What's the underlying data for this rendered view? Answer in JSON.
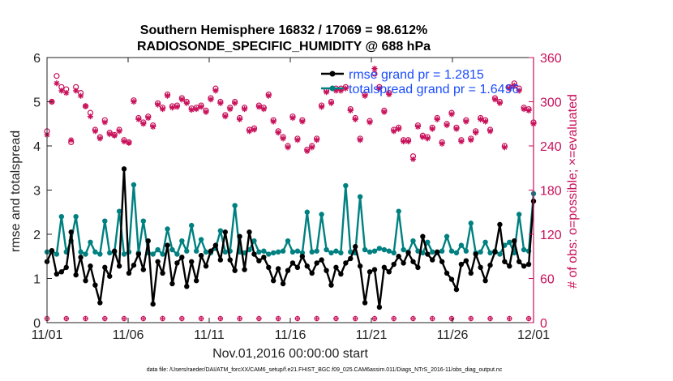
{
  "chart_data": {
    "type": "line",
    "title": "Southern Hemisphere 16832 / 17069 = 98.612%",
    "subtitle": "RADIOSONDE_SPECIFIC_HUMIDITY @ 688 hPa",
    "xlabel": "Nov.01,2016 00:00:00 start",
    "ylabel": "rmse and totalspread",
    "ylabel_right": "# of obs: o=possible; ×=evaluated",
    "xlim": [
      0,
      30
    ],
    "ylim": [
      0,
      6
    ],
    "ylim_right": [
      0,
      360
    ],
    "x_tick_labels": [
      "11/01",
      "11/06",
      "11/11",
      "11/16",
      "11/21",
      "11/26",
      "12/01"
    ],
    "y_ticks": [
      0,
      1,
      2,
      3,
      4,
      5,
      6
    ],
    "y_ticks_right": [
      0,
      60,
      120,
      180,
      240,
      300,
      360
    ],
    "legend_position": "top-right",
    "footnote": "data file: /Users/raeder/DAI/ATM_forcXX/CAM6_setup/f.e21.FHIST_BGC.f09_025.CAM6assim.011/Diags_NTrS_2016-11/obs_diag_output.nc",
    "colors": {
      "rmse": "#000000",
      "spread": "#008080",
      "obs": "#c8105a",
      "legend_text": "#1a4cff"
    },
    "series": [
      {
        "name": "rmse",
        "legend_label": "rmse grand pr = 1.2815",
        "values": [
          1.38,
          1.63,
          1.1,
          1.15,
          1.25,
          2.05,
          1.08,
          1.48,
          0.95,
          1.28,
          0.85,
          0.45,
          1.25,
          1.05,
          1.62,
          1.28,
          3.48,
          1.12,
          1.3,
          1.55,
          1.2,
          1.85,
          0.42,
          1.38,
          1.12,
          1.75,
          0.88,
          1.35,
          1.48,
          0.82,
          1.38,
          0.95,
          1.52,
          1.28,
          1.62,
          1.75,
          1.42,
          2.05,
          1.42,
          1.18,
          1.95,
          1.2,
          2.05,
          1.55,
          1.4,
          1.48,
          1.25,
          0.95,
          1.22,
          0.88,
          1.18,
          1.35,
          1.25,
          1.5,
          1.28,
          1.12,
          1.35,
          1.42,
          1.18,
          0.85,
          1.25,
          1.1,
          1.35,
          1.45,
          1.72,
          1.28,
          0.45,
          1.15,
          1.2,
          0.35,
          1.25,
          1.15,
          1.32,
          1.5,
          1.35,
          1.58,
          1.38,
          1.25,
          1.95,
          1.55,
          1.42,
          1.6,
          1.38,
          1.12,
          0.98,
          0.75,
          1.32,
          1.4,
          1.12,
          1.55,
          1.25,
          0.95,
          1.3,
          1.6,
          2.22,
          1.38,
          1.28,
          1.85,
          1.38,
          1.28,
          1.32,
          2.75
        ]
      },
      {
        "name": "totalspread",
        "legend_label": "totalspread grand pr = 1.6496",
        "values": [
          1.6,
          1.62,
          1.55,
          2.4,
          1.6,
          1.85,
          2.4,
          1.6,
          1.55,
          1.82,
          1.6,
          1.55,
          2.3,
          1.58,
          1.6,
          2.52,
          1.55,
          1.6,
          3.12,
          1.58,
          2.3,
          1.58,
          1.55,
          1.65,
          1.55,
          2.12,
          1.65,
          1.55,
          1.85,
          1.62,
          2.2,
          1.62,
          1.88,
          1.6,
          1.58,
          1.68,
          2.08,
          1.6,
          1.62,
          2.65,
          1.6,
          1.58,
          1.65,
          1.85,
          1.6,
          1.62,
          1.55,
          1.58,
          1.6,
          1.62,
          1.85,
          1.6,
          1.62,
          1.58,
          2.5,
          1.6,
          1.62,
          2.45,
          1.65,
          1.58,
          1.62,
          1.58,
          3.1,
          1.6,
          1.58,
          2.85,
          1.65,
          1.6,
          1.62,
          1.68,
          1.65,
          1.62,
          1.58,
          2.52,
          1.65,
          1.6,
          1.85,
          1.62,
          1.58,
          1.82,
          1.6,
          1.58,
          1.62,
          1.95,
          1.62,
          1.58,
          1.75,
          1.62,
          2.25,
          1.58,
          1.6,
          1.82,
          1.58,
          1.62,
          1.55,
          1.75,
          1.82,
          1.58,
          2.45,
          1.65,
          1.62,
          2.92
        ]
      }
    ],
    "obs_possible": [
      260,
      300,
      335,
      320,
      317,
      245,
      320,
      312,
      294,
      285,
      262,
      252,
      275,
      258,
      255,
      262,
      248,
      245,
      302,
      278,
      272,
      280,
      268,
      298,
      292,
      310,
      294,
      295,
      305,
      300,
      291,
      292,
      295,
      288,
      305,
      318,
      300,
      282,
      292,
      300,
      278,
      292,
      262,
      264,
      295,
      292,
      310,
      275,
      260,
      252,
      240,
      280,
      250,
      275,
      235,
      240,
      250,
      295,
      315,
      300,
      318,
      318,
      320,
      290,
      278,
      250,
      310,
      274,
      338,
      320,
      288,
      312,
      262,
      265,
      248,
      248,
      226,
      268,
      254,
      252,
      265,
      278,
      245,
      270,
      285,
      265,
      248,
      275,
      250,
      260,
      278,
      275,
      262,
      305,
      300,
      240,
      320,
      325,
      318,
      292,
      290,
      272
    ],
    "obs_evaluated": [
      255,
      300,
      325,
      315,
      312,
      248,
      315,
      308,
      294,
      280,
      260,
      250,
      272,
      256,
      254,
      260,
      246,
      244,
      300,
      276,
      270,
      278,
      266,
      296,
      290,
      308,
      292,
      293,
      303,
      298,
      289,
      290,
      293,
      286,
      303,
      315,
      298,
      280,
      290,
      298,
      276,
      290,
      260,
      262,
      293,
      290,
      308,
      273,
      258,
      250,
      238,
      278,
      248,
      273,
      233,
      238,
      248,
      293,
      313,
      298,
      315,
      315,
      318,
      288,
      276,
      248,
      308,
      272,
      345,
      318,
      286,
      310,
      260,
      263,
      246,
      246,
      222,
      266,
      252,
      250,
      263,
      276,
      243,
      268,
      283,
      263,
      246,
      273,
      248,
      258,
      276,
      273,
      260,
      303,
      298,
      238,
      318,
      322,
      315,
      290,
      288,
      270
    ]
  }
}
